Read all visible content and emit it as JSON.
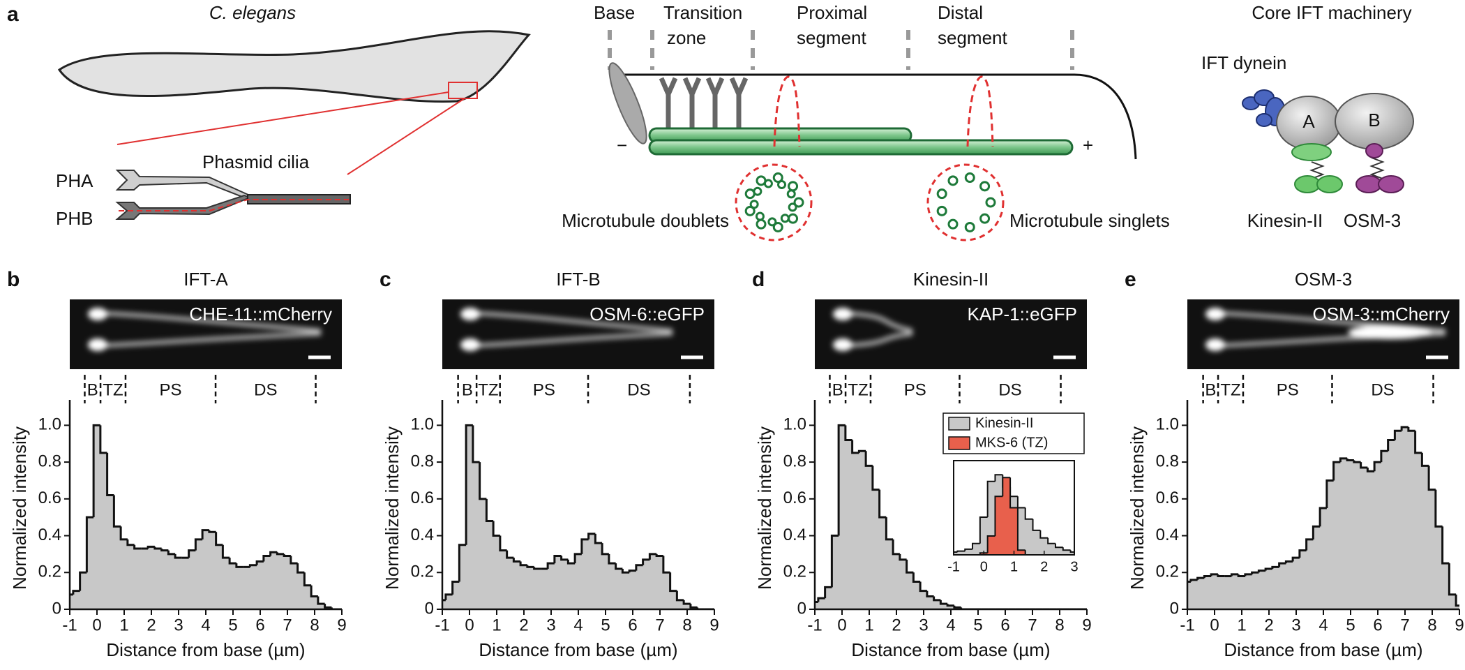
{
  "panel_a": {
    "letter": "a",
    "organism": "C. elegans",
    "cilia": "Phasmid cilia",
    "neurons": [
      "PHA",
      "PHB"
    ],
    "regions": {
      "base": "Base",
      "tz": [
        "Transition",
        "zone"
      ],
      "ps": [
        "Proximal",
        "segment"
      ],
      "ds": [
        "Distal",
        "segment"
      ]
    },
    "minus": "−",
    "plus": "+",
    "doublets": "Microtubule doublets",
    "singlets": "Microtubule singlets",
    "machinery": {
      "title": "Core IFT machinery",
      "dynein": "IFT dynein",
      "complex_a": "A",
      "complex_b": "B",
      "kinesin": "Kinesin-II",
      "osm3": "OSM-3"
    }
  },
  "chart_data": [
    {
      "type": "histogram",
      "panel": "b",
      "title": "IFT-A",
      "image_label": "CHE-11::mCherry",
      "regions": [
        "B",
        "TZ",
        "PS",
        "DS"
      ],
      "boundaries": [
        -0.45,
        0.13,
        1.05,
        4.36,
        8.04
      ],
      "xlabel": "Distance from base (µm)",
      "ylabel": "Normalized intensity",
      "color": "#c8c8c8",
      "xlim": [
        -1,
        9
      ],
      "xticks": [
        -1,
        0,
        1,
        2,
        3,
        4,
        5,
        6,
        7,
        8,
        9
      ],
      "ylim": [
        0,
        1.1
      ],
      "yticks": [
        0,
        0.2,
        0.4,
        0.6,
        0.8,
        {
          "value": 1,
          "label": "1.0"
        }
      ],
      "x": [
        -1,
        -0.75,
        -0.5,
        -0.25,
        0,
        0.25,
        0.5,
        0.75,
        1,
        1.25,
        1.5,
        1.75,
        2,
        2.25,
        2.5,
        2.75,
        3,
        3.25,
        3.5,
        3.75,
        4,
        4.25,
        4.5,
        4.75,
        5,
        5.25,
        5.5,
        5.75,
        6,
        6.25,
        6.5,
        6.75,
        7,
        7.25,
        7.5,
        7.75,
        8,
        8.25,
        8.5,
        8.75,
        9
      ],
      "values": [
        0.08,
        0.1,
        0.2,
        0.5,
        1.0,
        0.85,
        0.62,
        0.45,
        0.38,
        0.35,
        0.33,
        0.33,
        0.34,
        0.33,
        0.32,
        0.3,
        0.28,
        0.28,
        0.32,
        0.38,
        0.43,
        0.42,
        0.35,
        0.28,
        0.25,
        0.23,
        0.23,
        0.24,
        0.26,
        0.29,
        0.31,
        0.3,
        0.29,
        0.25,
        0.2,
        0.13,
        0.07,
        0.03,
        0.01,
        0,
        0
      ]
    },
    {
      "type": "histogram",
      "panel": "c",
      "title": "IFT-B",
      "image_label": "OSM-6::eGFP",
      "regions": [
        "B",
        "TZ",
        "PS",
        "DS"
      ],
      "boundaries": [
        -0.42,
        0.26,
        1.12,
        4.36,
        8.1
      ],
      "xlabel": "Distance from base (µm)",
      "ylabel": "Normalized intensity",
      "color": "#c8c8c8",
      "xlim": [
        -1,
        9
      ],
      "xticks": [
        -1,
        0,
        1,
        2,
        3,
        4,
        5,
        6,
        7,
        8,
        9
      ],
      "ylim": [
        0,
        1.1
      ],
      "yticks": [
        0,
        0.2,
        0.4,
        0.6,
        0.8,
        {
          "value": 1,
          "label": "1.0"
        }
      ],
      "x": [
        -1,
        -0.75,
        -0.5,
        -0.25,
        0,
        0.25,
        0.5,
        0.75,
        1,
        1.25,
        1.5,
        1.75,
        2,
        2.25,
        2.5,
        2.75,
        3,
        3.25,
        3.5,
        3.75,
        4,
        4.25,
        4.5,
        4.75,
        5,
        5.25,
        5.5,
        5.75,
        6,
        6.25,
        6.5,
        6.75,
        7,
        7.25,
        7.5,
        7.75,
        8,
        8.25,
        8.5,
        8.75,
        9
      ],
      "values": [
        0.05,
        0.08,
        0.15,
        0.35,
        1.0,
        0.8,
        0.6,
        0.48,
        0.4,
        0.32,
        0.28,
        0.26,
        0.24,
        0.23,
        0.22,
        0.22,
        0.25,
        0.29,
        0.27,
        0.25,
        0.3,
        0.38,
        0.41,
        0.36,
        0.3,
        0.25,
        0.22,
        0.2,
        0.21,
        0.24,
        0.27,
        0.3,
        0.29,
        0.2,
        0.1,
        0.05,
        0.03,
        0.01,
        0,
        0,
        0
      ]
    },
    {
      "type": "histogram",
      "panel": "d",
      "title": "Kinesin-II",
      "image_label": "KAP-1::eGFP",
      "regions": [
        "B",
        "TZ",
        "PS",
        "DS"
      ],
      "boundaries": [
        -0.45,
        0.13,
        1.05,
        4.32,
        8.04
      ],
      "xlabel": "Distance from base (µm)",
      "ylabel": "Normalized intensity",
      "color": "#c8c8c8",
      "xlim": [
        -1,
        9
      ],
      "xticks": [
        -1,
        0,
        1,
        2,
        3,
        4,
        5,
        6,
        7,
        8,
        9
      ],
      "ylim": [
        0,
        1.1
      ],
      "yticks": [
        0,
        0.2,
        0.4,
        0.6,
        0.8,
        {
          "value": 1,
          "label": "1.0"
        }
      ],
      "x": [
        -1,
        -0.75,
        -0.5,
        -0.25,
        0,
        0.25,
        0.5,
        0.75,
        1,
        1.25,
        1.5,
        1.75,
        2,
        2.25,
        2.5,
        2.75,
        3,
        3.25,
        3.5,
        3.75,
        4,
        4.25,
        4.5,
        4.75,
        5,
        5.25,
        5.5,
        5.75,
        6,
        6.25,
        6.5,
        6.75,
        7,
        7.25,
        7.5,
        7.75,
        8,
        8.25,
        8.5,
        8.75,
        9
      ],
      "values": [
        0.04,
        0.06,
        0.12,
        0.4,
        1.0,
        0.92,
        0.85,
        0.86,
        0.78,
        0.65,
        0.5,
        0.38,
        0.3,
        0.27,
        0.2,
        0.15,
        0.1,
        0.07,
        0.05,
        0.03,
        0.02,
        0.01,
        0,
        0,
        0,
        0,
        0,
        0,
        0,
        0,
        0,
        0,
        0,
        0,
        0,
        0,
        0,
        0,
        0,
        0,
        0
      ],
      "inset": {
        "xlim": [
          -1,
          3
        ],
        "xticks": [
          -1,
          0,
          1,
          2,
          3
        ],
        "ylim": [
          0,
          1
        ],
        "x": [
          -1,
          -0.75,
          -0.5,
          -0.25,
          0,
          0.25,
          0.5,
          0.75,
          1,
          1.25,
          1.5,
          1.75,
          2,
          2.25,
          2.5,
          2.75,
          3
        ],
        "series": [
          {
            "name": "Kinesin-II",
            "color": "#c8c8c8",
            "values": [
              0.03,
              0.04,
              0.06,
              0.12,
              0.4,
              0.78,
              0.85,
              0.72,
              0.62,
              0.5,
              0.38,
              0.26,
              0.18,
              0.12,
              0.08,
              0.05,
              0.03
            ]
          },
          {
            "name": "MKS-6 (TZ)",
            "color": "#e8604c",
            "values": [
              0,
              0,
              0,
              0,
              0.02,
              0.2,
              0.62,
              0.82,
              0.5,
              0.05,
              0,
              0,
              0,
              0,
              0,
              0,
              0
            ]
          }
        ]
      }
    },
    {
      "type": "histogram",
      "panel": "e",
      "title": "OSM-3",
      "image_label": "OSM-3::mCherry",
      "regions": [
        "B",
        "TZ",
        "PS",
        "DS"
      ],
      "boundaries": [
        -0.42,
        0.13,
        1.05,
        4.32,
        8.04
      ],
      "xlabel": "Distance from base (µm)",
      "ylabel": "Normalized intensity",
      "color": "#c8c8c8",
      "xlim": [
        -1,
        9
      ],
      "xticks": [
        -1,
        0,
        1,
        2,
        3,
        4,
        5,
        6,
        7,
        8,
        9
      ],
      "ylim": [
        0,
        1.1
      ],
      "yticks": [
        0,
        0.2,
        0.4,
        0.6,
        0.8,
        {
          "value": 1,
          "label": "1.0"
        }
      ],
      "x": [
        -1,
        -0.75,
        -0.5,
        -0.25,
        0,
        0.25,
        0.5,
        0.75,
        1,
        1.25,
        1.5,
        1.75,
        2,
        2.25,
        2.5,
        2.75,
        3,
        3.25,
        3.5,
        3.75,
        4,
        4.25,
        4.5,
        4.75,
        5,
        5.25,
        5.5,
        5.75,
        6,
        6.25,
        6.5,
        6.75,
        7,
        7.25,
        7.5,
        7.75,
        8,
        8.25,
        8.5,
        8.75,
        9
      ],
      "values": [
        0.15,
        0.16,
        0.17,
        0.18,
        0.19,
        0.18,
        0.18,
        0.19,
        0.18,
        0.19,
        0.2,
        0.21,
        0.22,
        0.23,
        0.25,
        0.26,
        0.28,
        0.32,
        0.38,
        0.45,
        0.55,
        0.7,
        0.8,
        0.82,
        0.81,
        0.8,
        0.77,
        0.75,
        0.8,
        0.86,
        0.92,
        0.97,
        0.99,
        0.97,
        0.85,
        0.78,
        0.65,
        0.45,
        0.25,
        0.08,
        0.02
      ]
    }
  ]
}
